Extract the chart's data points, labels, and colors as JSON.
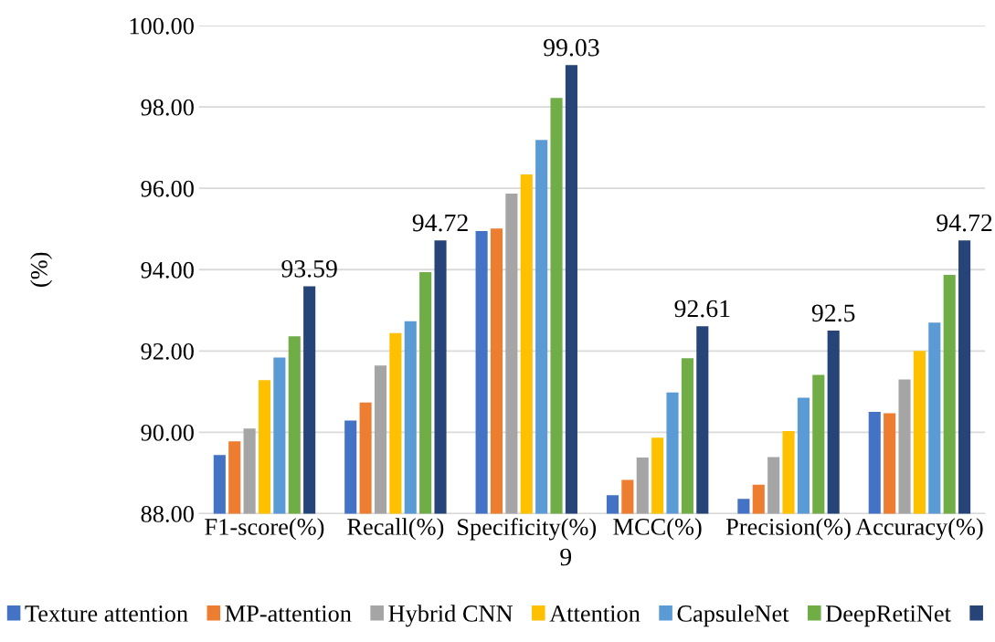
{
  "chart_data": {
    "type": "bar",
    "ylabel": "(%)",
    "categories": [
      "F1-score(%)",
      "Recall(%)",
      "Specificity(%)",
      "MCC(%)",
      "Precision(%)",
      "Accuracy(%)"
    ],
    "series": [
      {
        "name": "Texture attention",
        "color": "#4472c4",
        "values": [
          89.44,
          90.29,
          94.95,
          88.45,
          88.36,
          90.5
        ]
      },
      {
        "name": "MP-attention",
        "color": "#ed7d31",
        "values": [
          89.78,
          90.73,
          95.01,
          88.83,
          88.71,
          90.47
        ]
      },
      {
        "name": "Hybrid CNN",
        "color": "#a5a5a5",
        "values": [
          90.09,
          91.64,
          95.87,
          89.38,
          89.39,
          91.3
        ]
      },
      {
        "name": "Attention",
        "color": "#ffc000",
        "values": [
          91.28,
          92.44,
          96.34,
          89.87,
          90.03,
          92.0
        ]
      },
      {
        "name": "CapsuleNet",
        "color": "#5b9bd5",
        "values": [
          91.84,
          92.73,
          97.19,
          90.98,
          90.85,
          92.7
        ]
      },
      {
        "name": "DeepRetiNet",
        "color": "#70ad47",
        "values": [
          92.36,
          93.94,
          98.22,
          91.82,
          91.41,
          93.87
        ]
      },
      {
        "color": "#264478",
        "values": [
          93.59,
          94.72,
          99.03,
          92.61,
          92.5,
          94.72
        ],
        "value_labels": [
          "93.59",
          "94.72",
          "99.03",
          "92.61",
          "92.5",
          "94.72"
        ]
      }
    ],
    "ylim": [
      88,
      100
    ],
    "yticks": [
      {
        "value": 88,
        "label": "88.00"
      },
      {
        "value": 90,
        "label": "90.00"
      },
      {
        "value": 92,
        "label": "92.00"
      },
      {
        "value": 94,
        "label": "94.00"
      },
      {
        "value": 96,
        "label": "96.00"
      },
      {
        "value": 98,
        "label": "98.00"
      },
      {
        "value": 100,
        "label": "100.00"
      }
    ],
    "annotations": [
      "9"
    ],
    "grid": "y",
    "legend": "bottom"
  }
}
